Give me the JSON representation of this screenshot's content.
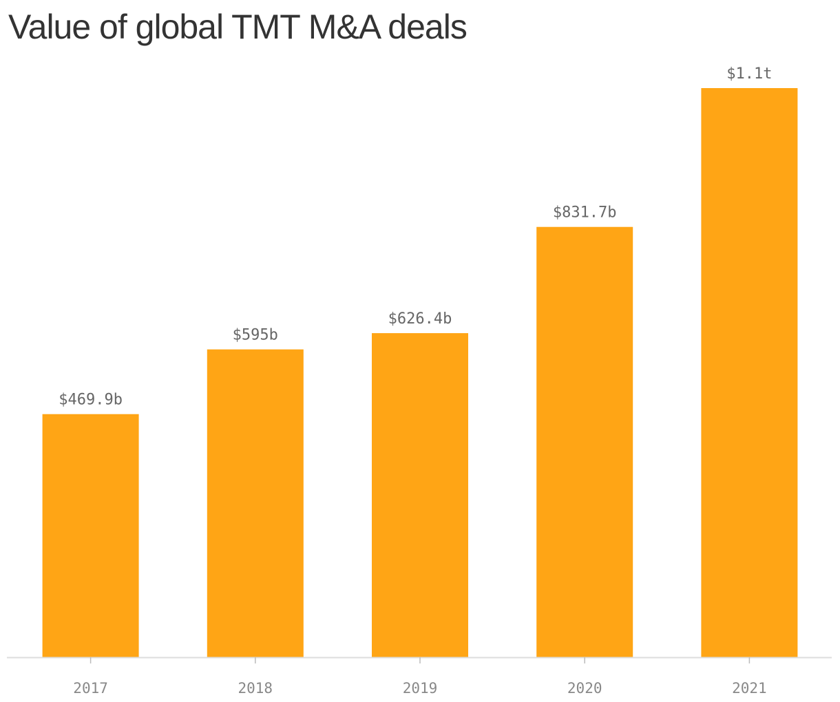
{
  "chart_data": {
    "type": "bar",
    "title": "Value of global TMT M&A deals",
    "categories": [
      "2017",
      "2018",
      "2019",
      "2020",
      "2021"
    ],
    "values": [
      469.9,
      595,
      626.4,
      831.7,
      1100
    ],
    "value_labels": [
      "$469.9b",
      "$595b",
      "$626.4b",
      "$831.7b",
      "$1.1t"
    ],
    "ylim": [
      0,
      1100
    ],
    "grid": false,
    "xlabel": "",
    "ylabel": ""
  },
  "colors": {
    "bar": "#FFA515",
    "axis": "#dddddd",
    "tick": "#bbbbbb"
  }
}
